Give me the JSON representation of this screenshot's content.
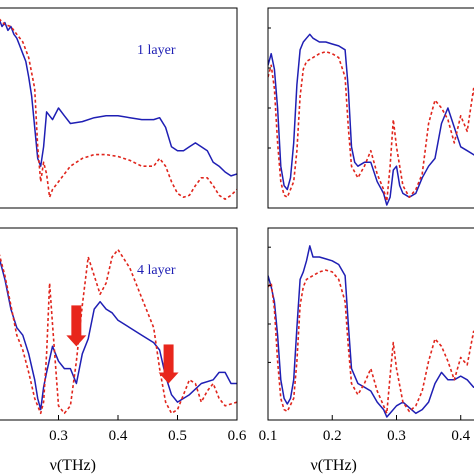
{
  "colors": {
    "experiment": "#1f1fb4",
    "simulation": "#e0251c",
    "arrow": "#e8261c",
    "axis": "#000000"
  },
  "chart_data": [
    {
      "type": "line",
      "panel": "top-left",
      "annotation": "1 layer",
      "annotation_color": "#1f1fb4",
      "xlim": [
        0.2,
        0.6
      ],
      "ylim": [
        0,
        1
      ],
      "xticks": [],
      "series": [
        {
          "style": "solid",
          "color": "#1f1fb4",
          "x": [
            0.2,
            0.205,
            0.21,
            0.215,
            0.22,
            0.225,
            0.23,
            0.235,
            0.24,
            0.245,
            0.25,
            0.255,
            0.26,
            0.265,
            0.27,
            0.275,
            0.28,
            0.29,
            0.3,
            0.31,
            0.32,
            0.34,
            0.36,
            0.38,
            0.4,
            0.42,
            0.44,
            0.46,
            0.47,
            0.48,
            0.49,
            0.5,
            0.51,
            0.52,
            0.53,
            0.54,
            0.55,
            0.56,
            0.57,
            0.58,
            0.59,
            0.6
          ],
          "y": [
            0.96,
            0.92,
            0.94,
            0.9,
            0.92,
            0.88,
            0.86,
            0.82,
            0.78,
            0.74,
            0.66,
            0.56,
            0.4,
            0.24,
            0.2,
            0.3,
            0.48,
            0.44,
            0.5,
            0.46,
            0.42,
            0.43,
            0.45,
            0.46,
            0.46,
            0.45,
            0.44,
            0.44,
            0.45,
            0.4,
            0.3,
            0.28,
            0.28,
            0.3,
            0.32,
            0.3,
            0.28,
            0.22,
            0.2,
            0.17,
            0.15,
            0.16
          ]
        },
        {
          "style": "dashed",
          "color": "#e0251c",
          "x": [
            0.2,
            0.21,
            0.22,
            0.23,
            0.24,
            0.25,
            0.26,
            0.265,
            0.27,
            0.275,
            0.28,
            0.285,
            0.29,
            0.3,
            0.32,
            0.34,
            0.36,
            0.38,
            0.4,
            0.42,
            0.44,
            0.46,
            0.47,
            0.48,
            0.49,
            0.5,
            0.51,
            0.52,
            0.53,
            0.54,
            0.55,
            0.56,
            0.57,
            0.58,
            0.59,
            0.6
          ],
          "y": [
            0.96,
            0.93,
            0.92,
            0.88,
            0.84,
            0.76,
            0.6,
            0.3,
            0.12,
            0.22,
            0.16,
            0.04,
            0.08,
            0.12,
            0.2,
            0.24,
            0.26,
            0.26,
            0.25,
            0.23,
            0.2,
            0.2,
            0.24,
            0.2,
            0.12,
            0.06,
            0.04,
            0.05,
            0.1,
            0.14,
            0.14,
            0.1,
            0.05,
            0.03,
            0.05,
            0.08
          ]
        }
      ]
    },
    {
      "type": "line",
      "panel": "top-right",
      "xlim": [
        0.1,
        0.43
      ],
      "ylim": [
        0,
        1
      ],
      "xticks": [],
      "series": [
        {
          "style": "solid",
          "color": "#1f1fb4",
          "x": [
            0.1,
            0.105,
            0.11,
            0.115,
            0.12,
            0.125,
            0.13,
            0.135,
            0.14,
            0.145,
            0.15,
            0.155,
            0.16,
            0.165,
            0.17,
            0.18,
            0.19,
            0.2,
            0.21,
            0.22,
            0.225,
            0.23,
            0.235,
            0.24,
            0.25,
            0.26,
            0.27,
            0.28,
            0.285,
            0.29,
            0.295,
            0.3,
            0.305,
            0.31,
            0.32,
            0.33,
            0.34,
            0.35,
            0.36,
            0.37,
            0.38,
            0.39,
            0.4,
            0.41,
            0.42,
            0.43
          ],
          "y": [
            0.72,
            0.78,
            0.7,
            0.5,
            0.2,
            0.1,
            0.08,
            0.14,
            0.32,
            0.62,
            0.8,
            0.84,
            0.86,
            0.88,
            0.86,
            0.84,
            0.84,
            0.83,
            0.82,
            0.8,
            0.6,
            0.3,
            0.22,
            0.2,
            0.22,
            0.22,
            0.12,
            0.06,
            0.0,
            0.04,
            0.18,
            0.2,
            0.1,
            0.06,
            0.04,
            0.06,
            0.14,
            0.2,
            0.24,
            0.42,
            0.5,
            0.4,
            0.3,
            0.28,
            0.26,
            0.24
          ]
        },
        {
          "style": "dashed",
          "color": "#e0251c",
          "x": [
            0.1,
            0.105,
            0.11,
            0.115,
            0.12,
            0.125,
            0.13,
            0.14,
            0.145,
            0.15,
            0.155,
            0.16,
            0.17,
            0.18,
            0.19,
            0.2,
            0.21,
            0.22,
            0.225,
            0.23,
            0.24,
            0.25,
            0.26,
            0.27,
            0.28,
            0.285,
            0.29,
            0.295,
            0.3,
            0.31,
            0.32,
            0.33,
            0.34,
            0.35,
            0.36,
            0.37,
            0.38,
            0.39,
            0.4,
            0.41,
            0.42,
            0.43
          ],
          "y": [
            0.66,
            0.72,
            0.6,
            0.32,
            0.12,
            0.05,
            0.04,
            0.12,
            0.28,
            0.56,
            0.7,
            0.74,
            0.76,
            0.78,
            0.79,
            0.78,
            0.76,
            0.66,
            0.4,
            0.2,
            0.14,
            0.2,
            0.28,
            0.16,
            0.08,
            0.02,
            0.2,
            0.44,
            0.3,
            0.1,
            0.04,
            0.08,
            0.16,
            0.42,
            0.54,
            0.5,
            0.44,
            0.32,
            0.46,
            0.38,
            0.6,
            0.4
          ]
        }
      ]
    },
    {
      "type": "line",
      "panel": "bottom-left",
      "annotation": "4 layer",
      "annotation_color": "#1f1fb4",
      "xlim": [
        0.2,
        0.6
      ],
      "ylim": [
        0,
        1
      ],
      "xticks": [
        "0.3",
        "0.4",
        "0.5",
        "0.6"
      ],
      "xtick_values": [
        0.3,
        0.4,
        0.5,
        0.6
      ],
      "xlabel": "ν(THz)",
      "series": [
        {
          "style": "solid",
          "color": "#1f1fb4",
          "x": [
            0.2,
            0.21,
            0.22,
            0.23,
            0.24,
            0.25,
            0.26,
            0.265,
            0.27,
            0.275,
            0.28,
            0.29,
            0.3,
            0.31,
            0.32,
            0.33,
            0.34,
            0.35,
            0.36,
            0.37,
            0.38,
            0.39,
            0.4,
            0.42,
            0.44,
            0.46,
            0.47,
            0.48,
            0.49,
            0.5,
            0.52,
            0.54,
            0.56,
            0.57,
            0.58,
            0.59,
            0.6
          ],
          "y": [
            0.86,
            0.74,
            0.58,
            0.48,
            0.44,
            0.34,
            0.2,
            0.1,
            0.04,
            0.16,
            0.24,
            0.38,
            0.3,
            0.26,
            0.26,
            0.18,
            0.34,
            0.42,
            0.58,
            0.62,
            0.58,
            0.56,
            0.52,
            0.48,
            0.44,
            0.4,
            0.36,
            0.22,
            0.12,
            0.08,
            0.12,
            0.18,
            0.2,
            0.24,
            0.24,
            0.18,
            0.18
          ]
        },
        {
          "style": "dashed",
          "color": "#e0251c",
          "x": [
            0.2,
            0.21,
            0.22,
            0.23,
            0.24,
            0.25,
            0.26,
            0.27,
            0.275,
            0.28,
            0.285,
            0.29,
            0.3,
            0.31,
            0.32,
            0.33,
            0.34,
            0.35,
            0.36,
            0.37,
            0.38,
            0.39,
            0.4,
            0.42,
            0.44,
            0.46,
            0.47,
            0.48,
            0.49,
            0.5,
            0.51,
            0.52,
            0.53,
            0.54,
            0.55,
            0.56,
            0.57,
            0.58,
            0.6
          ],
          "y": [
            0.88,
            0.76,
            0.6,
            0.44,
            0.36,
            0.24,
            0.1,
            0.02,
            0.08,
            0.34,
            0.72,
            0.5,
            0.06,
            0.02,
            0.06,
            0.3,
            0.6,
            0.86,
            0.76,
            0.66,
            0.72,
            0.86,
            0.9,
            0.8,
            0.64,
            0.48,
            0.26,
            0.08,
            0.02,
            0.04,
            0.12,
            0.2,
            0.18,
            0.08,
            0.14,
            0.18,
            0.1,
            0.06,
            0.08
          ]
        }
      ],
      "arrows": [
        {
          "x": 0.33,
          "y_top": 0.6,
          "y_bottom": 0.38
        },
        {
          "x": 0.485,
          "y_top": 0.39,
          "y_bottom": 0.18
        }
      ]
    },
    {
      "type": "line",
      "panel": "bottom-right",
      "xlim": [
        0.1,
        0.43
      ],
      "ylim": [
        0,
        1
      ],
      "xticks": [
        "0.1",
        "0.2",
        "0.3",
        "0.4"
      ],
      "xtick_values": [
        0.1,
        0.2,
        0.3,
        0.4
      ],
      "xlabel": "ν(THz)",
      "series": [
        {
          "style": "solid",
          "color": "#1f1fb4",
          "x": [
            0.1,
            0.105,
            0.11,
            0.115,
            0.12,
            0.125,
            0.13,
            0.135,
            0.14,
            0.145,
            0.15,
            0.155,
            0.16,
            0.165,
            0.17,
            0.18,
            0.19,
            0.2,
            0.21,
            0.22,
            0.225,
            0.23,
            0.24,
            0.25,
            0.26,
            0.27,
            0.28,
            0.285,
            0.29,
            0.3,
            0.31,
            0.32,
            0.33,
            0.34,
            0.35,
            0.36,
            0.37,
            0.38,
            0.39,
            0.4,
            0.41,
            0.42,
            0.43
          ],
          "y": [
            0.76,
            0.7,
            0.62,
            0.44,
            0.2,
            0.1,
            0.07,
            0.1,
            0.2,
            0.48,
            0.74,
            0.78,
            0.84,
            0.92,
            0.86,
            0.86,
            0.85,
            0.84,
            0.82,
            0.76,
            0.5,
            0.26,
            0.18,
            0.16,
            0.14,
            0.08,
            0.04,
            0.0,
            0.02,
            0.06,
            0.08,
            0.05,
            0.02,
            0.04,
            0.08,
            0.18,
            0.24,
            0.2,
            0.2,
            0.22,
            0.2,
            0.16,
            0.18
          ]
        },
        {
          "style": "dashed",
          "color": "#e0251c",
          "x": [
            0.1,
            0.105,
            0.11,
            0.115,
            0.12,
            0.125,
            0.13,
            0.14,
            0.145,
            0.15,
            0.155,
            0.16,
            0.17,
            0.18,
            0.19,
            0.2,
            0.21,
            0.22,
            0.225,
            0.23,
            0.24,
            0.25,
            0.26,
            0.27,
            0.28,
            0.285,
            0.29,
            0.295,
            0.3,
            0.31,
            0.32,
            0.33,
            0.34,
            0.35,
            0.36,
            0.37,
            0.38,
            0.39,
            0.4,
            0.41,
            0.42,
            0.43
          ],
          "y": [
            0.7,
            0.72,
            0.58,
            0.3,
            0.1,
            0.04,
            0.03,
            0.1,
            0.3,
            0.6,
            0.7,
            0.74,
            0.76,
            0.78,
            0.79,
            0.78,
            0.74,
            0.62,
            0.38,
            0.18,
            0.12,
            0.18,
            0.26,
            0.14,
            0.06,
            0.02,
            0.22,
            0.4,
            0.26,
            0.08,
            0.03,
            0.06,
            0.14,
            0.3,
            0.42,
            0.38,
            0.3,
            0.2,
            0.32,
            0.28,
            0.46,
            0.3
          ]
        }
      ]
    }
  ]
}
